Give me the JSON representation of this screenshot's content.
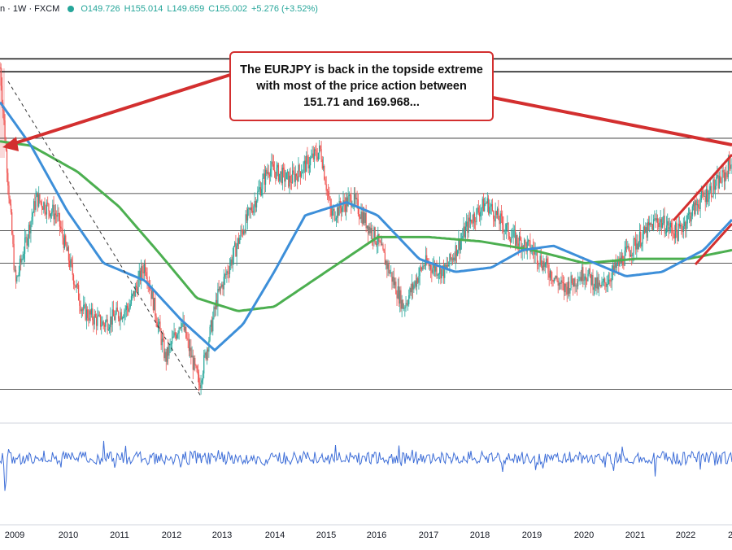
{
  "header": {
    "symbol_suffix": "n · 1W · FXCM",
    "open": "O149.726",
    "high": "H155.014",
    "low": "L149.659",
    "close": "C155.002",
    "change": "+5.276 (+3.52%)"
  },
  "annotation": {
    "text": "The EURJPY is back in the topside extreme with most of the price action between 151.71 and 169.968..."
  },
  "colors": {
    "up": "#26a69a",
    "down": "#ef5350",
    "ma_blue": "#3d8fd9",
    "ma_green": "#4caf50",
    "annotation_red": "#d32f2f",
    "volatility": "#3f6fd8"
  },
  "chart_data": {
    "type": "candlestick",
    "title": "",
    "xlabel": "",
    "ylabel": "",
    "x_ticks": [
      "2009",
      "2010",
      "2011",
      "2012",
      "2013",
      "2014",
      "2015",
      "2016",
      "2017",
      "2018",
      "2019",
      "2020",
      "2021",
      "2022",
      "2"
    ],
    "price_path": [
      {
        "year": 2008.7,
        "price": 168
      },
      {
        "year": 2009.0,
        "price": 118
      },
      {
        "year": 2009.4,
        "price": 138
      },
      {
        "year": 2009.8,
        "price": 134
      },
      {
        "year": 2010.3,
        "price": 112
      },
      {
        "year": 2010.7,
        "price": 109
      },
      {
        "year": 2011.2,
        "price": 113
      },
      {
        "year": 2011.5,
        "price": 123
      },
      {
        "year": 2011.9,
        "price": 101
      },
      {
        "year": 2012.2,
        "price": 110
      },
      {
        "year": 2012.55,
        "price": 95
      },
      {
        "year": 2012.9,
        "price": 115
      },
      {
        "year": 2013.4,
        "price": 131
      },
      {
        "year": 2013.9,
        "price": 145
      },
      {
        "year": 2014.3,
        "price": 142
      },
      {
        "year": 2014.9,
        "price": 149
      },
      {
        "year": 2015.1,
        "price": 134
      },
      {
        "year": 2015.5,
        "price": 138
      },
      {
        "year": 2016.0,
        "price": 128
      },
      {
        "year": 2016.5,
        "price": 113
      },
      {
        "year": 2016.9,
        "price": 123
      },
      {
        "year": 2017.3,
        "price": 121
      },
      {
        "year": 2017.8,
        "price": 133
      },
      {
        "year": 2018.1,
        "price": 137
      },
      {
        "year": 2018.6,
        "price": 129
      },
      {
        "year": 2019.0,
        "price": 126
      },
      {
        "year": 2019.6,
        "price": 117
      },
      {
        "year": 2020.0,
        "price": 121
      },
      {
        "year": 2020.3,
        "price": 117
      },
      {
        "year": 2020.8,
        "price": 125
      },
      {
        "year": 2021.4,
        "price": 133
      },
      {
        "year": 2021.8,
        "price": 130
      },
      {
        "year": 2022.2,
        "price": 137
      },
      {
        "year": 2022.7,
        "price": 143
      },
      {
        "year": 2022.85,
        "price": 147
      }
    ],
    "ma_blue": [
      {
        "year": 2008.7,
        "price": 160
      },
      {
        "year": 2009.3,
        "price": 150
      },
      {
        "year": 2010.0,
        "price": 135
      },
      {
        "year": 2010.7,
        "price": 123
      },
      {
        "year": 2011.5,
        "price": 119
      },
      {
        "year": 2012.2,
        "price": 110
      },
      {
        "year": 2012.85,
        "price": 103
      },
      {
        "year": 2013.4,
        "price": 109
      },
      {
        "year": 2014.0,
        "price": 121
      },
      {
        "year": 2014.6,
        "price": 134
      },
      {
        "year": 2015.4,
        "price": 137
      },
      {
        "year": 2016.0,
        "price": 134
      },
      {
        "year": 2016.8,
        "price": 124
      },
      {
        "year": 2017.5,
        "price": 121
      },
      {
        "year": 2018.2,
        "price": 122
      },
      {
        "year": 2018.8,
        "price": 126
      },
      {
        "year": 2019.4,
        "price": 127
      },
      {
        "year": 2020.0,
        "price": 124
      },
      {
        "year": 2020.8,
        "price": 120
      },
      {
        "year": 2021.5,
        "price": 121
      },
      {
        "year": 2022.3,
        "price": 126
      },
      {
        "year": 2022.85,
        "price": 133
      }
    ],
    "ma_green": [
      {
        "year": 2008.7,
        "price": 151
      },
      {
        "year": 2009.3,
        "price": 150
      },
      {
        "year": 2010.2,
        "price": 144
      },
      {
        "year": 2011.0,
        "price": 136
      },
      {
        "year": 2011.8,
        "price": 125
      },
      {
        "year": 2012.5,
        "price": 115
      },
      {
        "year": 2013.3,
        "price": 112
      },
      {
        "year": 2014.0,
        "price": 113
      },
      {
        "year": 2015.0,
        "price": 121
      },
      {
        "year": 2016.0,
        "price": 129
      },
      {
        "year": 2017.0,
        "price": 129
      },
      {
        "year": 2018.0,
        "price": 128
      },
      {
        "year": 2019.0,
        "price": 126
      },
      {
        "year": 2020.0,
        "price": 123
      },
      {
        "year": 2021.0,
        "price": 124
      },
      {
        "year": 2022.0,
        "price": 124
      },
      {
        "year": 2022.85,
        "price": 126
      }
    ],
    "horizontal_levels": [
      169.968,
      167,
      151.71,
      139,
      130.5,
      123,
      94
    ],
    "ylim": [
      90,
      176
    ],
    "xlim": [
      2008.7,
      2022.85
    ]
  }
}
